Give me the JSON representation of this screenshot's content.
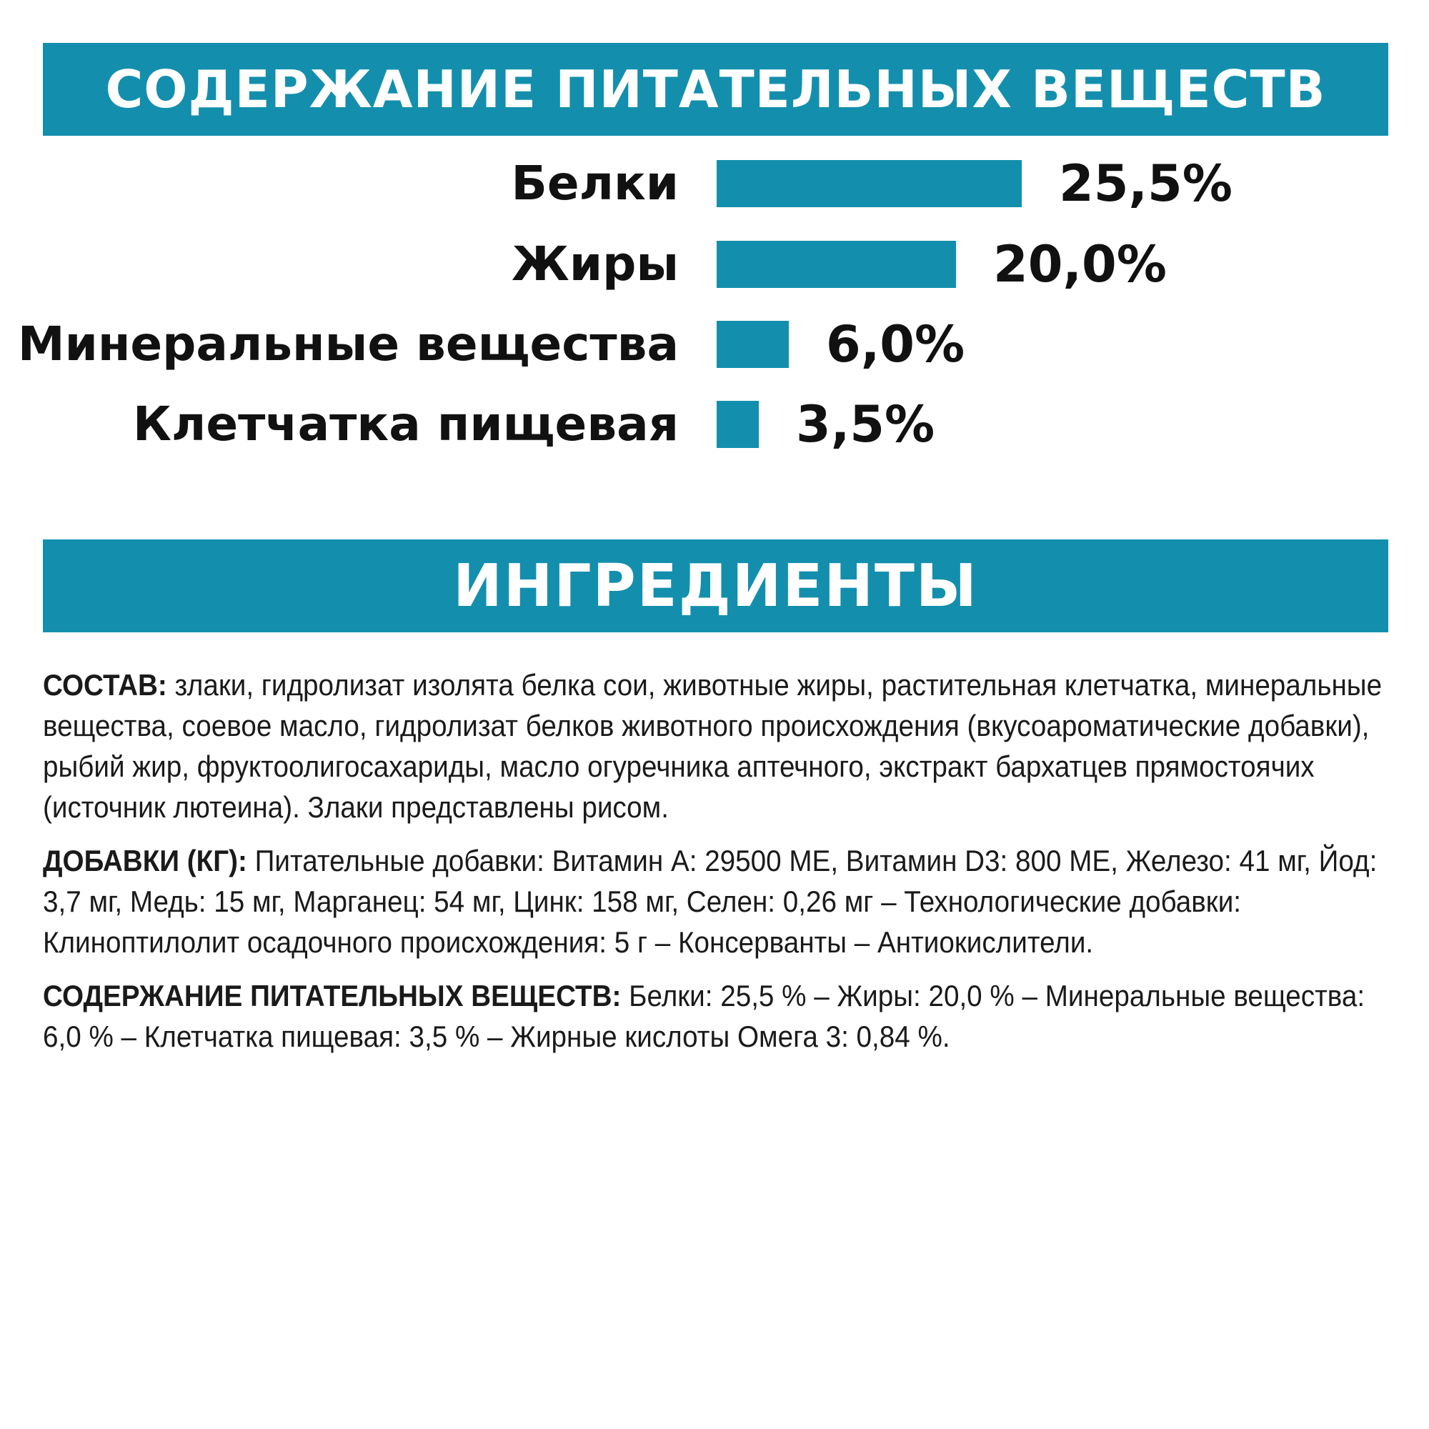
{
  "nutrients_section": {
    "title": "СОДЕРЖАНИЕ ПИТАТЕЛЬНЫХ ВЕЩЕСТВ"
  },
  "chart_data": {
    "type": "bar",
    "orientation": "horizontal",
    "categories": [
      "Белки",
      "Жиры",
      "Минеральные вещества",
      "Клетчатка пищевая"
    ],
    "values": [
      25.5,
      20.0,
      6.0,
      3.5
    ],
    "value_labels": [
      "25,5%",
      "20,0%",
      "6,0%",
      "3,5%"
    ],
    "unit": "%",
    "bar_color": "#138fad",
    "grid": false,
    "legend": "none"
  },
  "ingredients_section": {
    "title": "ИНГРЕДИЕНТЫ",
    "paragraphs": [
      {
        "lead": "СОСТАВ:",
        "text": " злаки, гидролизат изолята белка сои, животные жиры, растительная клетчатка, минеральные вещества, соевое масло, гидролизат белков животного происхождения (вкусоароматические добавки), рыбий жир, фруктоолигосахариды, масло огуречника аптечного, экстракт бархатцев прямостоячих (источник лютеина). Злаки представлены рисом."
      },
      {
        "lead": "ДОБАВКИ (КГ):",
        "text": " Питательные добавки: Витамин A: 29500 ME, Витамин D3: 800 ME, Железо: 41 мг, Йод: 3,7 мг, Медь: 15 мг, Марганец: 54 мг, Цинк: 158 мг, Селен: 0,26 мг – Технологические добавки: Клиноптилолит осадочного происхождения: 5 г – Консерванты – Антиокислители."
      },
      {
        "lead": "СОДЕРЖАНИЕ ПИТАТЕЛЬНЫХ ВЕЩЕСТВ:",
        "text": " Белки: 25,5 % – Жиры: 20,0 % – Минеральные вещества: 6,0 % – Клетчатка пищевая: 3,5 % – Жирные кислоты Омега 3: 0,84 %."
      }
    ]
  },
  "colors": {
    "accent": "#138fad",
    "text": "#111111",
    "background": "#ffffff"
  }
}
